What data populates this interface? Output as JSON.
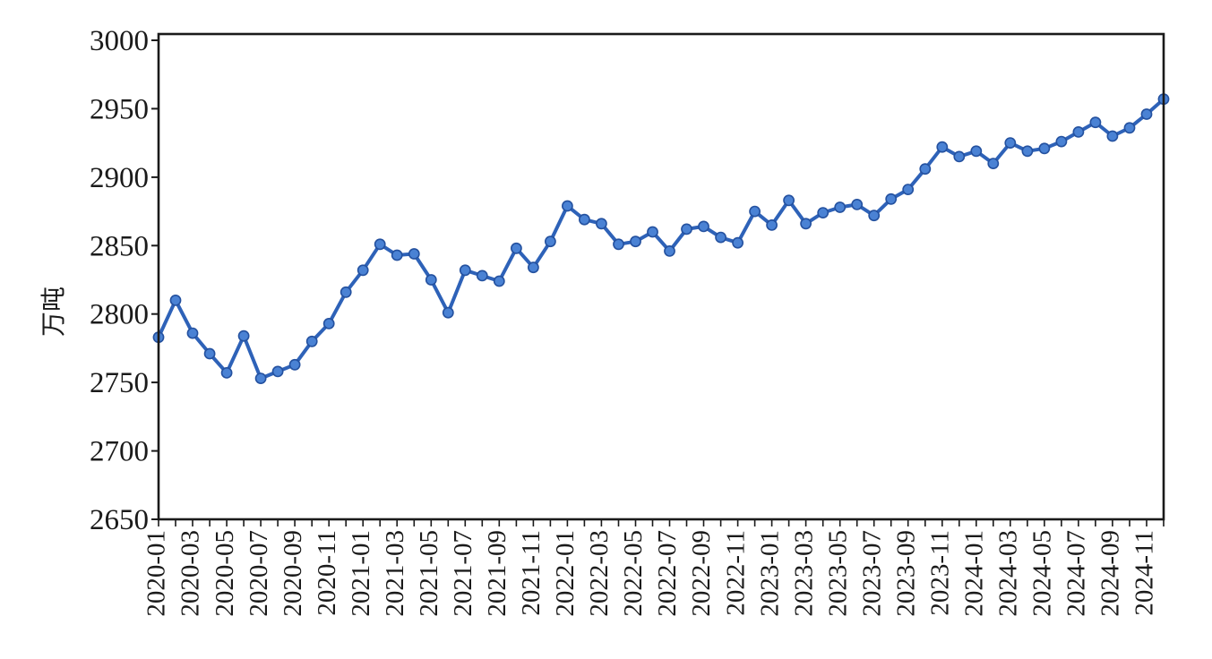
{
  "chart_data": {
    "type": "line",
    "title": "",
    "xlabel": "",
    "ylabel": "万吨",
    "legend_position": "none",
    "grid": false,
    "ylim": [
      2650,
      3000
    ],
    "y_ticks": [
      3000,
      2950,
      2900,
      2850,
      2800,
      2750,
      2700,
      2650
    ],
    "x_tick_labels": [
      "2020-01",
      "2020-03",
      "2020-05",
      "2020-07",
      "2020-09",
      "2020-11",
      "2021-01",
      "2021-03",
      "2021-05",
      "2021-07",
      "2021-09",
      "2021-11",
      "2022-01",
      "2022-03",
      "2022-05",
      "2022-07",
      "2022-09",
      "2022-11",
      "2023-01",
      "2023-03",
      "2023-05",
      "2023-07",
      "2023-09",
      "2023-11",
      "2024-01",
      "2024-03",
      "2024-05",
      "2024-07",
      "2024-09",
      "2024-11"
    ],
    "categories": [
      "2020-01",
      "2020-02",
      "2020-03",
      "2020-04",
      "2020-05",
      "2020-06",
      "2020-07",
      "2020-08",
      "2020-09",
      "2020-10",
      "2020-11",
      "2020-12",
      "2021-01",
      "2021-02",
      "2021-03",
      "2021-04",
      "2021-05",
      "2021-06",
      "2021-07",
      "2021-08",
      "2021-09",
      "2021-10",
      "2021-11",
      "2021-12",
      "2022-01",
      "2022-02",
      "2022-03",
      "2022-04",
      "2022-05",
      "2022-06",
      "2022-07",
      "2022-08",
      "2022-09",
      "2022-10",
      "2022-11",
      "2022-12",
      "2023-01",
      "2023-02",
      "2023-03",
      "2023-04",
      "2023-05",
      "2023-06",
      "2023-07",
      "2023-08",
      "2023-09",
      "2023-10",
      "2023-11",
      "2023-12",
      "2024-01",
      "2024-02",
      "2024-03",
      "2024-04",
      "2024-05",
      "2024-06",
      "2024-07",
      "2024-08",
      "2024-09",
      "2024-10",
      "2024-11",
      "2024-12"
    ],
    "values": [
      2783,
      2810,
      2786,
      2771,
      2757,
      2784,
      2753,
      2758,
      2763,
      2780,
      2793,
      2816,
      2832,
      2851,
      2843,
      2844,
      2825,
      2801,
      2832,
      2828,
      2824,
      2848,
      2834,
      2853,
      2879,
      2869,
      2866,
      2851,
      2853,
      2860,
      2846,
      2862,
      2864,
      2856,
      2852,
      2875,
      2865,
      2883,
      2866,
      2874,
      2878,
      2880,
      2872,
      2884,
      2891,
      2906,
      2922,
      2915,
      2919,
      2910,
      2925,
      2919,
      2921,
      2926,
      2933,
      2940,
      2930,
      2936,
      2946,
      2957
    ],
    "colors": {
      "line": "#2e62b8",
      "marker_fill": "#4a82d4",
      "marker_edge": "#24519f",
      "axis": "#1a1a1a",
      "text": "#1a1a1a"
    }
  }
}
